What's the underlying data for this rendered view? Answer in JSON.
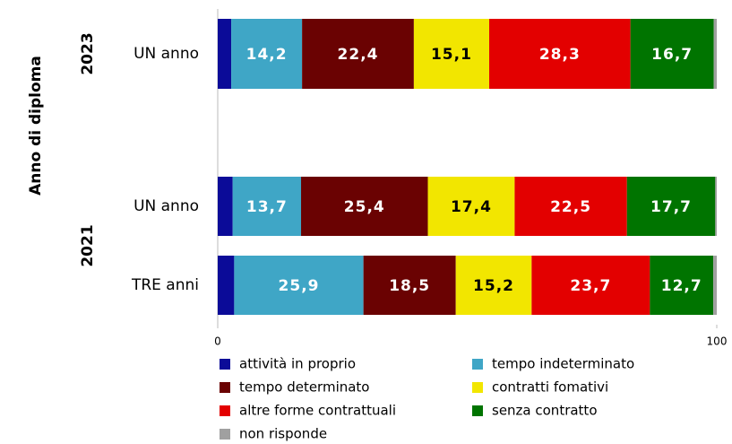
{
  "chart_data": {
    "type": "stacked_barh",
    "y_label": "Anno di diploma",
    "groups": [
      "2023",
      "2021"
    ],
    "categories": [
      "UN anno",
      "UN anno",
      "TRE anni"
    ],
    "xlim": [
      0,
      100
    ],
    "xticks": [
      0,
      100
    ],
    "series": [
      {
        "name": "attività in proprio",
        "color": "#0b0b98",
        "values": [
          2.7,
          3.0,
          3.3
        ]
      },
      {
        "name": "tempo indeterminato",
        "color": "#3fa6c6",
        "values": [
          14.2,
          13.7,
          25.9
        ],
        "value_labels": [
          "14,2",
          "13,7",
          "25,9"
        ]
      },
      {
        "name": "tempo determinato",
        "color": "#6a0202",
        "values": [
          22.4,
          25.4,
          18.5
        ],
        "value_labels": [
          "22,4",
          "25,4",
          "18,5"
        ]
      },
      {
        "name": "contratti fomativi",
        "color": "#f2e600",
        "values": [
          15.1,
          17.4,
          15.2
        ],
        "value_labels": [
          "15,1",
          "17,4",
          "15,2"
        ]
      },
      {
        "name": "altre forme contrattuali",
        "color": "#e30000",
        "values": [
          28.3,
          22.5,
          23.7
        ],
        "value_labels": [
          "28,3",
          "22,5",
          "23,7"
        ]
      },
      {
        "name": "senza contratto",
        "color": "#007400",
        "values": [
          16.7,
          17.7,
          12.7
        ],
        "value_labels": [
          "16,7",
          "17,7",
          "12,7"
        ]
      },
      {
        "name": "non risponde",
        "color": "#a0a0a0",
        "values": [
          0.6,
          0.3,
          0.7
        ]
      }
    ]
  }
}
